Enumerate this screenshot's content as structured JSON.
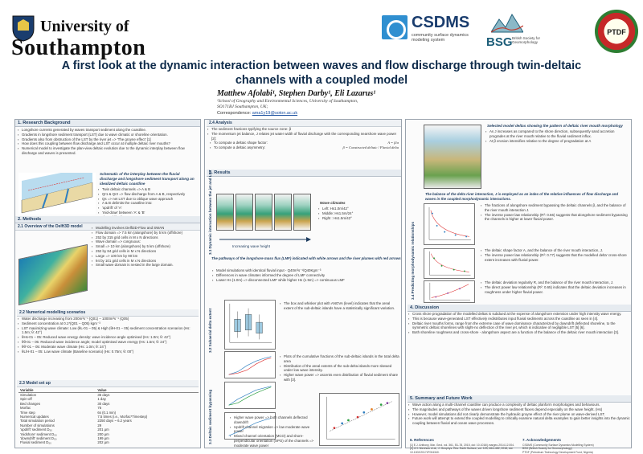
{
  "header": {
    "university_line1": "University of",
    "university_line2": "Southampton",
    "csdms_name": "CSDMS",
    "csdms_tagline": "community surface dynamics modeling system",
    "bsg_name": "BSG",
    "bsg_tagline": "British Society for Geomorphology",
    "ptdf_name": "PTDF"
  },
  "title": {
    "line1": "A first look at the dynamic interaction between waves and flow discharge through twin-deltaic",
    "line2": "channels with a coupled model"
  },
  "authors": "Matthew Afolabi¹, Stephen Darby¹, Eli Lazarus¹",
  "affiliation": {
    "line1": "¹School of Geography and Environmental Sciences, University of Southampton,",
    "line2": "SO171BJ Southampton, UK;"
  },
  "correspondence": {
    "label": "Correspondence:",
    "email": "ama1y19@soton.ac.uk"
  },
  "left": {
    "research_head": "1.  Research Background",
    "background_bullets": [
      "Longshore currents generated by waves transport sediment along the coastline.",
      "Gradients in longshore sediment transport (LST) due to wave climatic or shoreline orientation.",
      "Gradients also from obstruction of the LST by the river jet => 'The groyne effect' [1]",
      "How does this coupling between flow discharge and LST occur at multiple deltaic river mouths?",
      "Numerical model to investigate the plan-view deltaic evolution due to the dynamic interplay between flow discharge and waves is presented."
    ],
    "inlet_caption": "Schematic of the interplay between the fluvial discharge and longshore sediment transport along an idealized deltaic coastline",
    "inlet_notes": [
      "Twin deltaic channels => A & B",
      "Qr1 & Qr2 => flow discharge from A & B, respectively",
      "Qs => net LST due to oblique wave approach",
      "A & B delimits the coastline into:",
      "'updrift' of 'A'",
      "'mid-draw' between 'A' & 'B'",
      "'downdrift' of 'B'"
    ],
    "methods_head": "2.  Methods",
    "overview_head": "2.1  Overview of the Delft3D model",
    "model_notes": [
      "Modelling involves Delft3D-Flow and SWAN",
      "Flow domain => 7.5 km (alongshore) by 5 km (offshore)",
      "252 by 315 grid cells in M x N directions",
      "Wave domain => congruous:",
      "Small => 10 km (alongshore) by 5 km (offshore)",
      "252 by 84 grid cells in M x N directions",
      "Large => 100 km by 90 km",
      "94 by 101 grid cells in M x N directions",
      "Small wave domain is nested in the large domain."
    ],
    "scen_head": "2.2  Numerical modelling scenarios",
    "scen_lines": [
      "Water discharge increasing from 200m³s⁻¹ (Q01) – 1000m³s⁻¹ (Q05)",
      "Sediment concentration at 0.1*(Q01 – Q05) kgm⁻³",
      "LST maximizing wave climate: Low (θL-01 – 05) & High (θH-01 – 05) sediment concentration scenarios (Hs: 1.5m; θ: 42°)",
      "θHs-01 – 05: Reduced wave energy density: wave incidence angle optimised (Hs: 1.0m; θ: 42°)",
      "θθ-01 – 05: Reduced wave incidence angle; model optimised wave energy (Hs: 1.5m; θ: 24°)",
      "θθ'-01 – 05: Moderate wave climate (Hs: 1.0m; θ: 24°)",
      "θL/H-01 – 05: Low wave climate (Baseline scenario) (Hs: 0.75m; θ: 00°)"
    ],
    "setup_head": "2.3  Model set up",
    "setup_table": {
      "headers": [
        "Variable",
        "Value"
      ],
      "rows": [
        [
          "Simulation",
          "35 days"
        ],
        [
          "Spin-off",
          "1 day"
        ],
        [
          "Bed changes",
          "30 days"
        ],
        [
          "Morfac",
          "75"
        ],
        [
          "Time step",
          "6s (0.1 min)"
        ],
        [
          "Numerical updates",
          "7.5 times (i.e., Morfac*Timestep)"
        ],
        [
          "Total simulation period",
          "2250 days ~ 6.2 years"
        ],
        [
          "Number of simulations",
          "29"
        ],
        [
          "'updrift' sediment D₅₀",
          "201 μm"
        ],
        [
          "'midshore' sediment D₅₀",
          "200 μm"
        ],
        [
          "'downdrift' sediment D₅₀",
          "199 μm"
        ],
        [
          "Fluvial sediment D₅₀",
          "202 μm"
        ]
      ]
    }
  },
  "middle": {
    "analysis_head": "2.4 Analysis",
    "analysis_lines": [
      "The sediment fractions typifying the source zone: β",
      "The momentum jet balance, J relates jet water width of fluvial discharge with the corresponding nearshore wave power [2]:",
      "To compute a deltaic shape factor:",
      "To compute a deltaic asymmetry:"
    ],
    "eq_shape": "A = β/α",
    "eq_asym": "β = Constructed deltaic / Fluvial delta",
    "results_head": "3. Results",
    "sub31": "3.1  Dynamic interaction between the jet and LST",
    "wave_legend_head": "Wave climates",
    "wave_legend": [
      "Left: Hs1.0m/42°",
      "Middle: Hs1.5m/24°",
      "Right : Hs1.5m/42°"
    ],
    "wave_arrow_label": "Increasing wave height",
    "result_caption": "The pathways of the longshore mass flux (LMF) indicated with white arrows and the river plumes with red arrows",
    "result_bullets": [
      "Model simulations with identical fluvial input - Q40m³s⁻¹/Q40Kgm⁻³",
      "Differences in wave climates informed the degree of LMF connectivity",
      "Lower Hs (1.0m) => disconnected LMF while higher Hs (1.5m) => continuous LMF"
    ],
    "sub32": "3.2  Subaerial delta extent",
    "box_notes": [
      "The box and whisker plot with ANOVA (level) indicates that the areal extent of the sub-deltaic islands have a statistically significant variation."
    ],
    "frac_notes": [
      "Plots of the cumulative fractions of the sub-deltaic islands in the total delta area",
      "Distribution of the areal extents of the sub-delta islands more skewed under low wave intensity.",
      "Higher wave power => ascents even distribution of fluvial sediment share with [3]."
    ],
    "sub33": "3.3 Deltaic sediment bypassing",
    "sed_notes": [
      "Higher wave power => both channels deflected downdrift",
      "Updrift channel migration => low moderate wave power",
      "Mixed channel orientation (MCO) and shore-perpendicular orientation (SPO) of the channels => moderate wave power"
    ]
  },
  "right": {
    "morph_caption_top": "Selected model deltas showing the pattern of deltaic river mouth morphology",
    "morph_notes": [
      "As J increases as compared to the shore direction, subsequently sand accretion progrades at the river mouth relative to the fluvial sediment influx.",
      "At β erosion intensifies relative to the degree of progradation at A"
    ],
    "morph_caption": "The balance of the delta river interaction, J is employed as an index of the relative influences of flow discharge and waves in the coupled morphodynamic interactions.",
    "sub34": "3.4 Predicting morphodynamic relationships",
    "mnotes1": [
      "The fractions of alongshore sediment bypassing the deltaic channels β, and the balance of the river mouth interaction J.",
      "The inverse power law relationship (R²: 0.66) suggests that alongshore sediment bypassing the channels is higher at lower fluvial power."
    ],
    "mnotes2": [
      "The deltaic shape factor A, and the balance of the river mouth interaction, J.",
      "The inverse power law relationship (R²: 0.77) suggests that the modelled delta' cross-shore extent increases with fluvial power."
    ],
    "mnotes3": [
      "The deltaic deviation regularity R, and the balance of the river mouth interaction, J.",
      "The direct power law relationship (R²: 0.65) indicates that the deltaic deviation increases in roughness under higher fluvial power."
    ],
    "discussion_head": "4.  Discussion",
    "discussion_lines": [
      "Cross shore progradation of the modelled deltas is subdued at the expense of alongshore extension under high intensity wave energy.",
      "This is because wave-generated LST effectively redistributes input fluvial sediments across the coastline as seen in [4].",
      "Deltaic river mouths forms, range from the extreme case of wave dominance characterized by downdrift deflected shoreline, to the symmetric deltaic shorelines with slight-no deflection of the river jet, which is indicative of negligible LST [5] [6].",
      "Both shoreline roughness and cross-shore - alongshore aspect are a function of the balance of the deltaic river mouth interaction [3]."
    ],
    "summary_head": "5. Summary and Future Work",
    "summary_lines": [
      "Wave action along a multi-channel coastline can produce a complexity of deltaic planform morphologies and behaviours.",
      "The magnitudes and pathways of the waves driven longshore sediment fluxes depend especially on the wave height. (Hs)",
      "However, model simulations did not clearly demonstrate the hydraulic groyne effect of the river plume on wave-derived LST.",
      "Future work will attempt to extend the coupled modelling to critically examine natural delta examples to gain better insights into the dynamic coupling between fluvial and ocean wave processes."
    ],
    "refs_head": "6. References",
    "refs": [
      "[1] E.J. Anthony, Mar. Geol. vol. 361, 53–78, 2015, doi: 10.1016/j.margeo.2014.12.004.",
      "[2] J.H. Nienhuis et al., J. Geophys. Res. Earth Surface, vol. 123, 464–482, 2018, doi: 10.1002/2017JF004340.",
      "[3] R.M. Gailer et al., Mar. Res. Earth Surf. vol. 123, 2017–2035, 2018, doi: 10.1029/2018JF004692.",
      "[4] J. Mitchell et al., 2021, 415, 1082, doi: 10.1016/j.geomorph.2021.107796.",
      "[5] J.P. Bhattacharya, Int. Assoc. Sedimentol. vol. 41, 2175–2181, 2015, doi: 10.1016/0264-7.doi(15.23)."
    ],
    "acks_head": "7. Acknowledgements",
    "acks": [
      "CSDMS (Community Surface Dynamics Modelling System)",
      "BSG (British Society for Geomorphology)",
      "PTDF (Petroleum Technology Development Fund, Nigeria)",
      "Anne Tendere for providing the original model set up"
    ]
  }
}
